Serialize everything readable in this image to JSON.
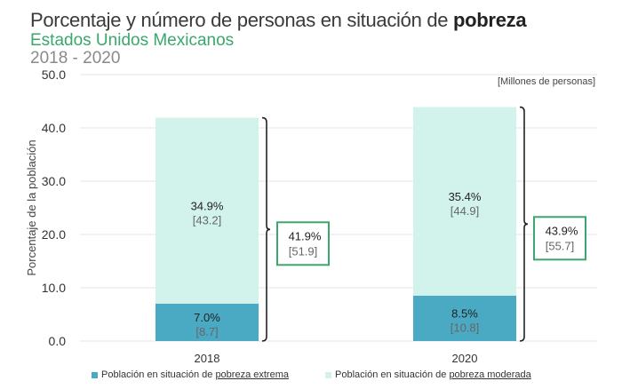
{
  "header": {
    "title_prefix": "Porcentaje y número de personas en situación de ",
    "title_bold": "pobreza",
    "subtitle": "Estados Unidos Mexicanos",
    "years": "2018 - 2020",
    "units": "[Millones de personas]"
  },
  "colors": {
    "extreme": "#4aaac4",
    "moderate": "#d2f2ec",
    "total_box_border": "#3aa76d",
    "subtitle": "#3aa76d",
    "grid": "#e6e6e6"
  },
  "legend": [
    {
      "prefix": "Población en situación de ",
      "underlined": "pobreza extrema",
      "color": "#4aaac4"
    },
    {
      "prefix": "Población en situación de ",
      "underlined": "pobreza moderada",
      "color": "#d2f2ec"
    }
  ],
  "chart_data": {
    "type": "bar",
    "stacked": true,
    "title": "Porcentaje y número de personas en situación de pobreza",
    "subtitle": "Estados Unidos Mexicanos, 2018 - 2020",
    "xlabel": "",
    "ylabel": "Porcentaje de la población",
    "ylim": [
      0,
      50
    ],
    "yticks": [
      "0.0",
      "10.0",
      "20.0",
      "30.0",
      "40.0",
      "50.0"
    ],
    "grid": true,
    "legend_position": "bottom",
    "categories": [
      "2018",
      "2020"
    ],
    "series": [
      {
        "name": "Población en situación de pobreza extrema",
        "values": [
          7.0,
          8.5
        ],
        "labels": [
          "7.0%",
          "8.5%"
        ],
        "millions": [
          "[8.7]",
          "[10.8]"
        ]
      },
      {
        "name": "Población en situación de pobreza moderada",
        "values": [
          34.9,
          35.4
        ],
        "labels": [
          "34.9%",
          "35.4%"
        ],
        "millions": [
          "[43.2]",
          "[44.9]"
        ]
      }
    ],
    "totals": {
      "values": [
        41.9,
        43.9
      ],
      "labels": [
        "41.9%",
        "43.9%"
      ],
      "millions": [
        "[51.9]",
        "[55.7]"
      ]
    },
    "units_note": "[Millones de personas]"
  }
}
